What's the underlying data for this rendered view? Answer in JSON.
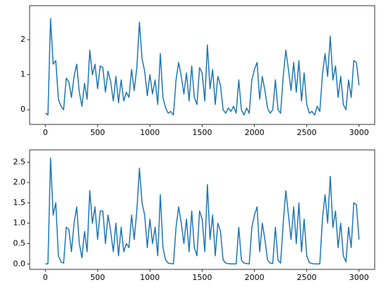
{
  "chart_data": [
    {
      "type": "line",
      "color": "#1f77b4",
      "x": [
        0,
        25,
        50,
        75,
        100,
        125,
        150,
        175,
        200,
        225,
        250,
        275,
        300,
        325,
        350,
        375,
        400,
        425,
        450,
        475,
        500,
        525,
        550,
        575,
        600,
        625,
        650,
        675,
        700,
        725,
        750,
        775,
        800,
        825,
        850,
        875,
        900,
        925,
        950,
        975,
        1000,
        1025,
        1050,
        1075,
        1100,
        1125,
        1150,
        1175,
        1200,
        1225,
        1250,
        1275,
        1300,
        1325,
        1350,
        1375,
        1400,
        1425,
        1450,
        1475,
        1500,
        1525,
        1550,
        1575,
        1600,
        1625,
        1650,
        1675,
        1700,
        1725,
        1750,
        1775,
        1800,
        1825,
        1850,
        1875,
        1900,
        1925,
        1950,
        1975,
        2000,
        2025,
        2050,
        2075,
        2100,
        2125,
        2150,
        2175,
        2200,
        2225,
        2250,
        2275,
        2300,
        2325,
        2350,
        2375,
        2400,
        2425,
        2450,
        2475,
        2500,
        2525,
        2550,
        2575,
        2600,
        2625,
        2650,
        2675,
        2700,
        2725,
        2750,
        2775,
        2800,
        2825,
        2850,
        2875,
        2900,
        2925,
        2950,
        2975,
        3000
      ],
      "values": [
        -0.1,
        -0.15,
        2.6,
        1.3,
        1.4,
        0.3,
        0.1,
        0.0,
        0.9,
        0.8,
        0.35,
        0.95,
        1.3,
        0.5,
        0.1,
        0.75,
        0.3,
        1.7,
        1.0,
        1.3,
        0.6,
        1.25,
        1.2,
        0.5,
        1.1,
        0.8,
        0.25,
        0.95,
        0.2,
        0.85,
        0.25,
        0.5,
        0.35,
        1.15,
        0.55,
        1.2,
        2.5,
        1.45,
        1.1,
        0.4,
        1.0,
        0.45,
        0.85,
        0.15,
        1.6,
        0.35,
        0.05,
        -0.1,
        -0.05,
        -0.15,
        0.85,
        1.35,
        0.95,
        0.45,
        1.05,
        0.25,
        1.25,
        0.35,
        0.15,
        1.2,
        1.05,
        0.25,
        1.85,
        0.6,
        1.15,
        0.15,
        0.95,
        0.7,
        0.0,
        -0.1,
        0.05,
        -0.05,
        0.1,
        -0.1,
        0.85,
        0.0,
        -0.15,
        0.05,
        -0.1,
        0.85,
        1.15,
        1.35,
        0.3,
        0.95,
        0.55,
        0.05,
        -0.1,
        0.0,
        0.85,
        0.0,
        -0.1,
        0.95,
        1.7,
        1.15,
        0.55,
        1.35,
        0.5,
        1.4,
        0.25,
        1.05,
        0.15,
        -0.1,
        -0.05,
        -0.15,
        0.1,
        -0.05,
        1.0,
        1.6,
        0.95,
        2.1,
        0.85,
        1.25,
        0.35,
        0.95,
        0.15,
        0.0,
        0.85,
        0.35,
        1.4,
        1.35,
        0.7
      ],
      "xlim": [
        -150,
        3150
      ],
      "ylim": [
        -0.42,
        2.97
      ],
      "xticks": [
        0,
        500,
        1000,
        1500,
        2000,
        2500,
        3000
      ],
      "yticks": [
        0,
        1,
        2
      ]
    },
    {
      "type": "line",
      "color": "#1f77b4",
      "x": [
        0,
        25,
        50,
        75,
        100,
        125,
        150,
        175,
        200,
        225,
        250,
        275,
        300,
        325,
        350,
        375,
        400,
        425,
        450,
        475,
        500,
        525,
        550,
        575,
        600,
        625,
        650,
        675,
        700,
        725,
        750,
        775,
        800,
        825,
        850,
        875,
        900,
        925,
        950,
        975,
        1000,
        1025,
        1050,
        1075,
        1100,
        1125,
        1150,
        1175,
        1200,
        1225,
        1250,
        1275,
        1300,
        1325,
        1350,
        1375,
        1400,
        1425,
        1450,
        1475,
        1500,
        1525,
        1550,
        1575,
        1600,
        1625,
        1650,
        1675,
        1700,
        1725,
        1750,
        1775,
        1800,
        1825,
        1850,
        1875,
        1900,
        1925,
        1950,
        1975,
        2000,
        2025,
        2050,
        2075,
        2100,
        2125,
        2150,
        2175,
        2200,
        2225,
        2250,
        2275,
        2300,
        2325,
        2350,
        2375,
        2400,
        2425,
        2450,
        2475,
        2500,
        2525,
        2550,
        2575,
        2600,
        2625,
        2650,
        2675,
        2700,
        2725,
        2750,
        2775,
        2800,
        2825,
        2850,
        2875,
        2900,
        2925,
        2950,
        2975,
        3000
      ],
      "values": [
        0,
        0,
        2.6,
        1.2,
        1.5,
        0.2,
        0.05,
        0.02,
        0.9,
        0.85,
        0.3,
        1.0,
        1.4,
        0.5,
        0.15,
        0.8,
        0.3,
        1.8,
        1.0,
        1.4,
        0.6,
        1.3,
        1.3,
        0.5,
        1.2,
        0.8,
        0.3,
        1.0,
        0.2,
        0.9,
        0.3,
        0.5,
        0.4,
        1.2,
        0.6,
        1.3,
        2.35,
        1.5,
        1.2,
        0.4,
        1.1,
        0.5,
        0.9,
        0.2,
        1.7,
        0.4,
        0.1,
        0.02,
        0.01,
        0,
        0.9,
        1.4,
        1.0,
        0.5,
        1.1,
        0.3,
        1.3,
        0.4,
        0.2,
        1.3,
        1.1,
        0.3,
        1.95,
        0.6,
        1.2,
        0.2,
        1.0,
        0.8,
        0.1,
        0.02,
        0.01,
        0,
        0,
        0,
        0.9,
        0.1,
        0.02,
        0.01,
        0,
        0.9,
        1.2,
        1.4,
        0.3,
        1.0,
        0.6,
        0.1,
        0.02,
        0.01,
        0.9,
        0.1,
        0.02,
        1.0,
        1.8,
        1.2,
        0.6,
        1.4,
        0.5,
        1.5,
        0.3,
        1.1,
        0.2,
        0.03,
        0.01,
        0,
        0,
        0,
        1.1,
        1.7,
        1.0,
        2.15,
        0.9,
        1.3,
        0.4,
        1.0,
        0.2,
        0.05,
        0.9,
        0.4,
        1.5,
        1.45,
        0.6
      ],
      "xlim": [
        -150,
        3150
      ],
      "ylim": [
        -0.134,
        2.8
      ],
      "xticks": [
        0,
        500,
        1000,
        1500,
        2000,
        2500,
        3000
      ],
      "yticks": [
        {
          "value": 0,
          "label": "0.0"
        },
        {
          "value": 0.5,
          "label": "0.5"
        },
        {
          "value": 1,
          "label": "1.0"
        },
        {
          "value": 1.5,
          "label": "1.5"
        },
        {
          "value": 2,
          "label": "2.0"
        },
        {
          "value": 2.5,
          "label": "2.5"
        }
      ]
    }
  ]
}
